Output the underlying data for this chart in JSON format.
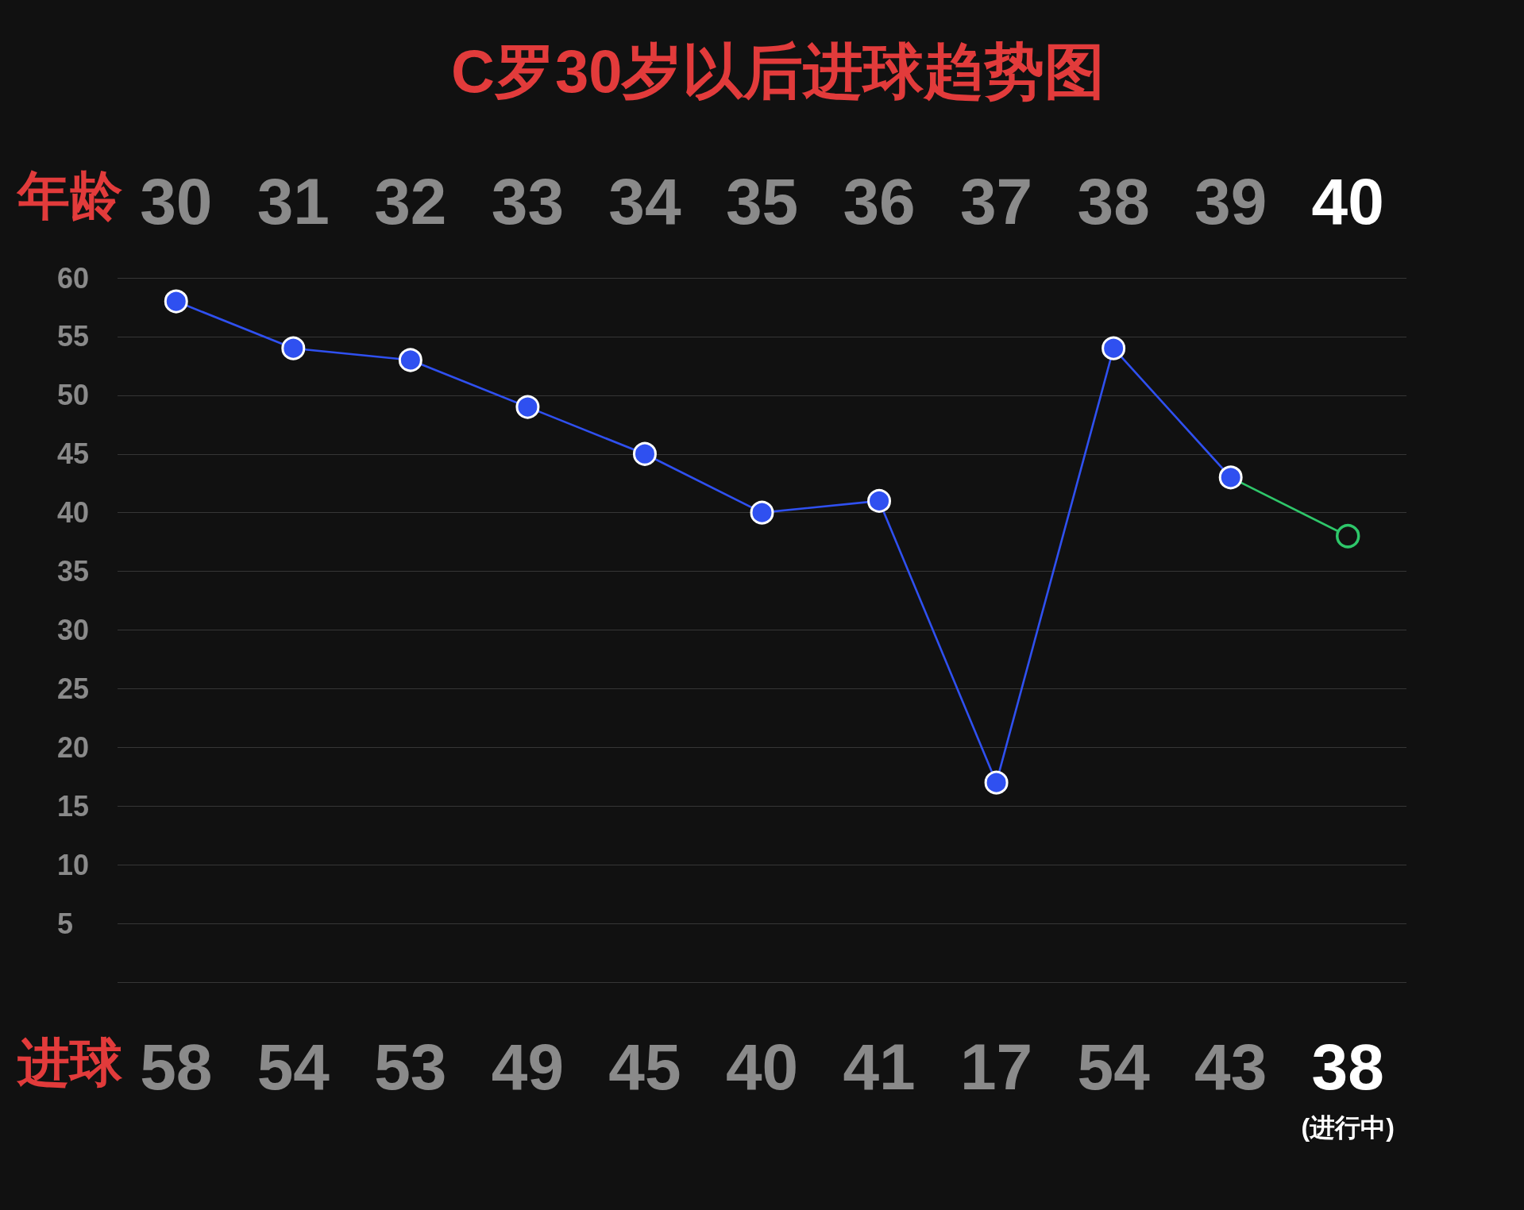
{
  "chart_data": {
    "type": "line",
    "title": "C罗30岁以后进球趋势图",
    "xlabel": "年龄",
    "ylabel": "进球",
    "categories": [
      "30",
      "31",
      "32",
      "33",
      "34",
      "35",
      "36",
      "37",
      "38",
      "39",
      "40"
    ],
    "values": [
      58,
      54,
      53,
      49,
      45,
      40,
      41,
      17,
      54,
      43,
      38
    ],
    "colors": [
      "#2f50f0",
      "#2f50f0",
      "#2f50f0",
      "#2f50f0",
      "#2f50f0",
      "#2f50f0",
      "#2f50f0",
      "#2f50f0",
      "#2f50f0",
      "#2f50f0",
      "#2ec76a"
    ],
    "ylim": [
      0,
      60
    ],
    "yticks": [
      {
        "value": 0,
        "label": null
      },
      5,
      10,
      15,
      20,
      25,
      30,
      35,
      40,
      45,
      50,
      55,
      60
    ],
    "grid": "y",
    "marker": "circle",
    "line_style": "solid",
    "data_labels": true,
    "annotations": [
      "(进行中)"
    ]
  }
}
